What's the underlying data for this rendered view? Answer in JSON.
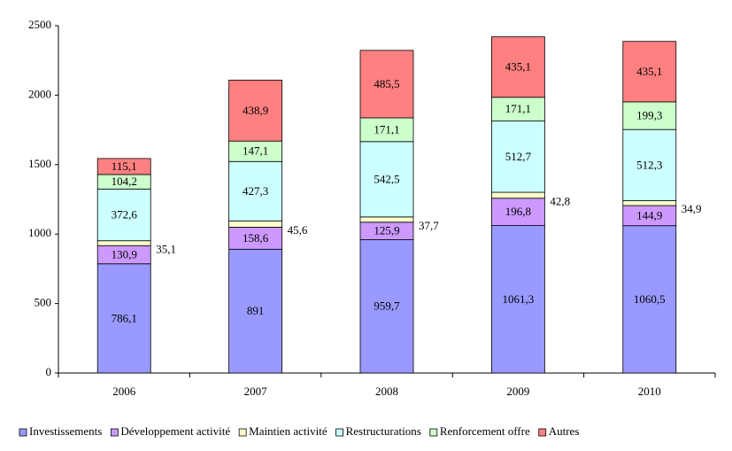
{
  "chart_data": {
    "type": "stacked-bar",
    "categories": [
      "2006",
      "2007",
      "2008",
      "2009",
      "2010"
    ],
    "ylim": [
      0,
      2500
    ],
    "yticks": [
      0,
      500,
      1000,
      1500,
      2000,
      2500
    ],
    "legend": "bottom",
    "series": [
      {
        "name": "Investissements",
        "color": "#9999ff",
        "values": [
          786.1,
          891,
          959.7,
          1061.3,
          1060.5
        ],
        "value_labels": [
          "786,1",
          "891",
          "959,7",
          "1061,3",
          "1060,5"
        ]
      },
      {
        "name": "Développement activité",
        "color": "#cc99ff",
        "values": [
          130.9,
          158.6,
          125.9,
          196.8,
          144.9
        ],
        "value_labels": [
          "130,9",
          "158,6",
          "125,9",
          "196,8",
          "144,9"
        ]
      },
      {
        "name": "Maintien activité",
        "color": "#ffffcc",
        "values": [
          35.1,
          45.6,
          37.7,
          42.8,
          34.9
        ],
        "value_labels": [
          "35,1",
          "45,6",
          "37,7",
          "42,8",
          "34,9"
        ]
      },
      {
        "name": "Restructurations",
        "color": "#ccffff",
        "values": [
          372.6,
          427.3,
          542.5,
          512.7,
          512.3
        ],
        "value_labels": [
          "372,6",
          "427,3",
          "542,5",
          "512,7",
          "512,3"
        ]
      },
      {
        "name": "Renforcement offre",
        "color": "#ccffcc",
        "values": [
          104.2,
          147.1,
          171.1,
          171.1,
          199.3
        ],
        "value_labels": [
          "104,2",
          "147,1",
          "171,1",
          "171,1",
          "199,3"
        ]
      },
      {
        "name": "Autres",
        "color": "#ff8080",
        "values": [
          115.1,
          438.9,
          485.5,
          435.1,
          435.1
        ],
        "value_labels": [
          "115,1",
          "438,9",
          "485,5",
          "435,1",
          "435,1"
        ]
      }
    ]
  }
}
